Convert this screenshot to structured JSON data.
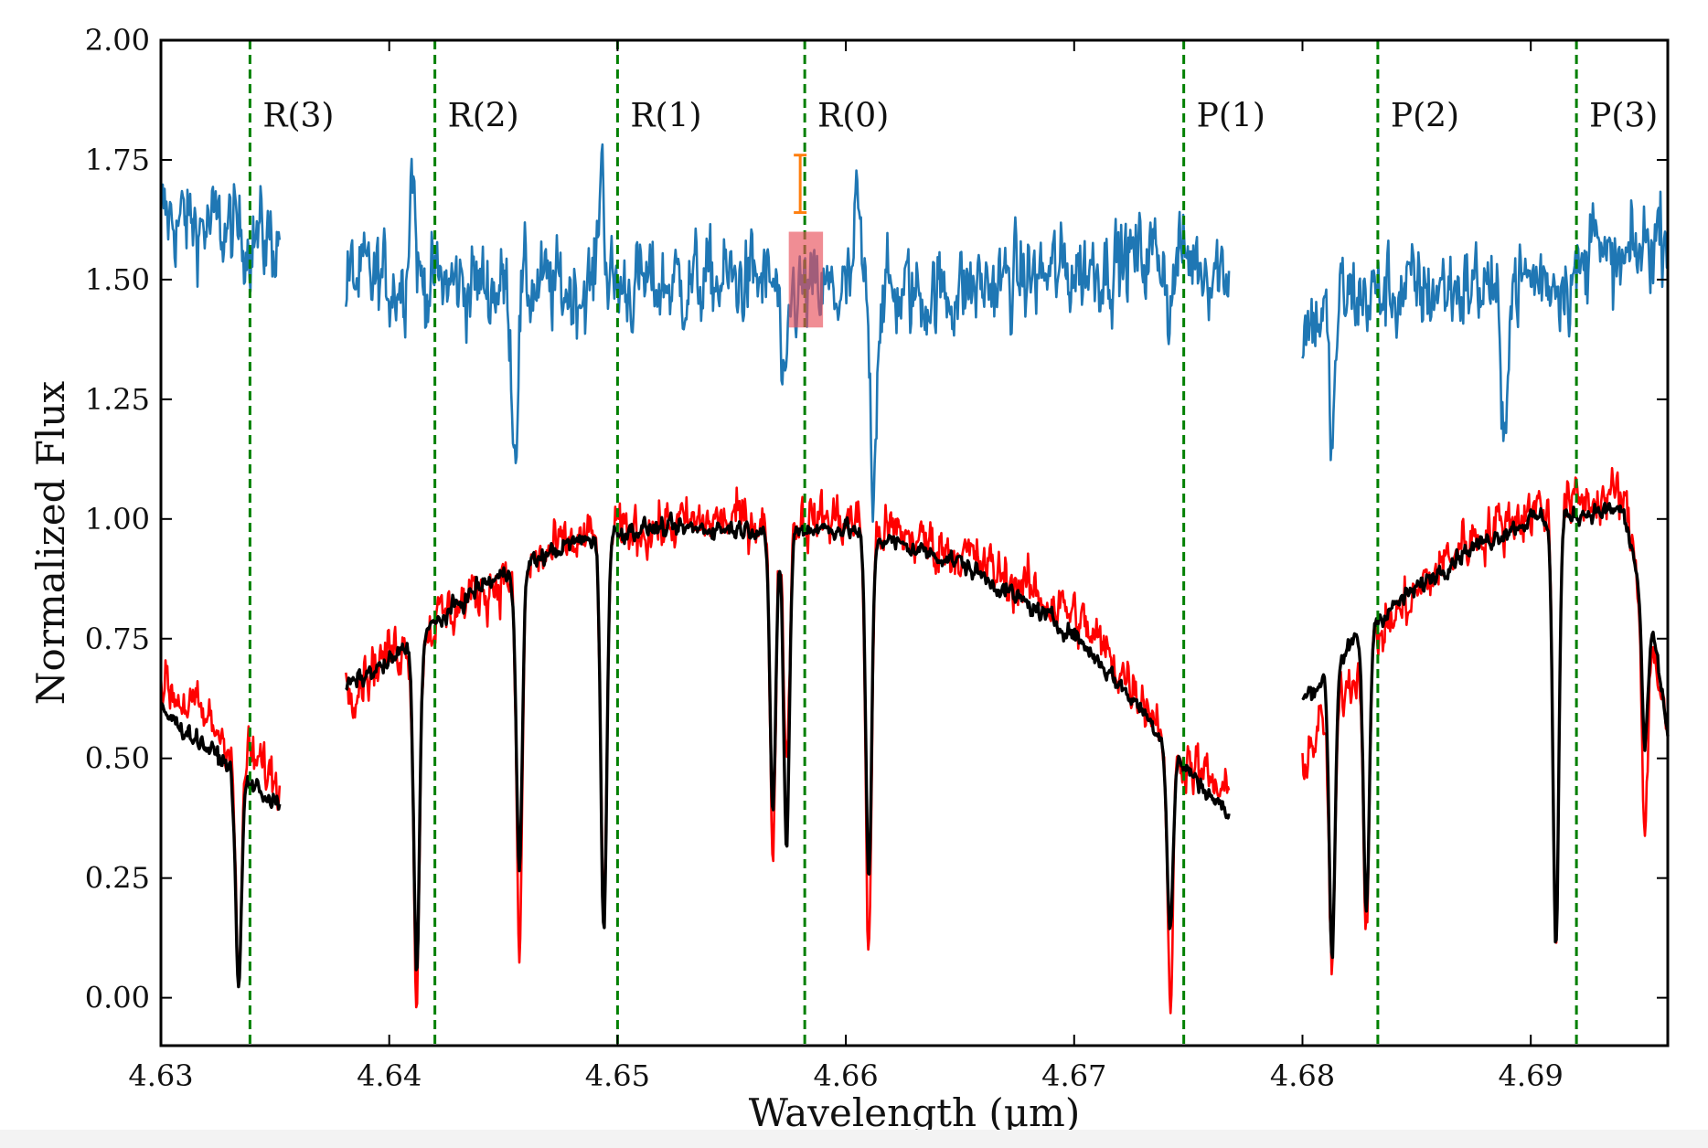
{
  "chart_data": {
    "type": "line",
    "xlabel": "Wavelength (μm)",
    "ylabel": "Normalized Flux",
    "xlim": [
      4.63,
      4.696
    ],
    "ylim": [
      -0.1,
      2.0
    ],
    "xticks": [
      4.63,
      4.64,
      4.65,
      4.66,
      4.67,
      4.68,
      4.69
    ],
    "xtick_labels": [
      "4.63",
      "4.64",
      "4.65",
      "4.66",
      "4.67",
      "4.68",
      "4.69"
    ],
    "yticks": [
      0.0,
      0.25,
      0.5,
      0.75,
      1.0,
      1.25,
      1.5,
      1.75,
      2.0
    ],
    "ytick_labels": [
      "0.00",
      "0.25",
      "0.50",
      "0.75",
      "1.00",
      "1.25",
      "1.50",
      "1.75",
      "2.00"
    ],
    "grid": false,
    "colors": {
      "blue": "#1f77b4",
      "red": "#ff0000",
      "black": "#000000",
      "vline": "#008000",
      "errorbar": "#ff7f0e",
      "box": "#e8505b"
    },
    "vlines": [
      {
        "x": 4.6339,
        "label": "R(3)"
      },
      {
        "x": 4.642,
        "label": "R(2)"
      },
      {
        "x": 4.65,
        "label": "R(1)"
      },
      {
        "x": 4.6582,
        "label": "R(0)"
      },
      {
        "x": 4.6748,
        "label": "P(1)"
      },
      {
        "x": 4.6833,
        "label": "P(2)"
      },
      {
        "x": 4.692,
        "label": "P(3)"
      }
    ],
    "segments": [
      {
        "xmin": 4.63,
        "xmax": 4.6352
      },
      {
        "xmin": 4.6381,
        "xmax": 4.6768
      },
      {
        "xmin": 4.68,
        "xmax": 4.696
      }
    ],
    "series": [
      {
        "color": "blue",
        "noise": 0.06,
        "points": [
          [
            4.63,
            1.63
          ],
          [
            4.6352,
            1.58
          ],
          [
            4.6381,
            1.5
          ],
          [
            4.648,
            1.48
          ],
          [
            4.656,
            1.5
          ],
          [
            4.658,
            1.47
          ],
          [
            4.664,
            1.47
          ],
          [
            4.67,
            1.52
          ],
          [
            4.674,
            1.56
          ],
          [
            4.6768,
            1.52
          ],
          [
            4.68,
            1.4
          ],
          [
            4.6815,
            1.46
          ],
          [
            4.69,
            1.5
          ],
          [
            4.694,
            1.52
          ],
          [
            4.696,
            1.62
          ]
        ],
        "features": [
          [
            4.6455,
            -0.32
          ],
          [
            4.641,
            0.25
          ],
          [
            4.6493,
            0.27
          ],
          [
            4.6612,
            -0.38
          ],
          [
            4.6573,
            -0.28
          ],
          [
            4.6742,
            -0.33
          ],
          [
            4.6888,
            -0.38
          ],
          [
            4.6813,
            -0.3
          ],
          [
            4.6605,
            0.18
          ],
          [
            4.6928,
            0.2
          ],
          [
            4.6742,
            0.2
          ]
        ]
      },
      {
        "color": "red",
        "noise": 0.035,
        "points": [
          [
            4.63,
            0.66
          ],
          [
            4.6352,
            0.45
          ],
          [
            4.6381,
            0.65
          ],
          [
            4.64,
            0.72
          ],
          [
            4.644,
            0.85
          ],
          [
            4.648,
            0.95
          ],
          [
            4.651,
            0.98
          ],
          [
            4.656,
            1.0
          ],
          [
            4.658,
            1.0
          ],
          [
            4.66,
            1.0
          ],
          [
            4.665,
            0.93
          ],
          [
            4.67,
            0.8
          ],
          [
            4.673,
            0.63
          ],
          [
            4.6745,
            0.52
          ],
          [
            4.6768,
            0.41
          ],
          [
            4.68,
            0.5
          ],
          [
            4.683,
            0.74
          ],
          [
            4.687,
            0.95
          ],
          [
            4.69,
            1.02
          ],
          [
            4.694,
            1.05
          ],
          [
            4.6955,
            0.7
          ],
          [
            4.696,
            0.55
          ]
        ],
        "features": [
          [
            4.6334,
            -0.5
          ],
          [
            4.6412,
            -0.75
          ],
          [
            4.6457,
            -0.8
          ],
          [
            4.6494,
            -0.8
          ],
          [
            4.6568,
            -0.68
          ],
          [
            4.6574,
            -0.5
          ],
          [
            4.661,
            -0.9
          ],
          [
            4.6742,
            -0.55
          ],
          [
            4.6813,
            -0.55
          ],
          [
            4.6828,
            -0.55
          ],
          [
            4.6911,
            -0.9
          ],
          [
            4.695,
            -0.45
          ]
        ]
      },
      {
        "color": "black",
        "noise": 0.012,
        "points": [
          [
            4.63,
            0.6
          ],
          [
            4.6352,
            0.4
          ],
          [
            4.6381,
            0.65
          ],
          [
            4.64,
            0.7
          ],
          [
            4.644,
            0.86
          ],
          [
            4.648,
            0.95
          ],
          [
            4.651,
            0.98
          ],
          [
            4.656,
            0.98
          ],
          [
            4.658,
            0.98
          ],
          [
            4.66,
            0.98
          ],
          [
            4.665,
            0.91
          ],
          [
            4.67,
            0.76
          ],
          [
            4.673,
            0.6
          ],
          [
            4.6745,
            0.5
          ],
          [
            4.6768,
            0.38
          ],
          [
            4.68,
            0.62
          ],
          [
            4.683,
            0.78
          ],
          [
            4.687,
            0.93
          ],
          [
            4.69,
            1.0
          ],
          [
            4.694,
            1.02
          ],
          [
            4.6955,
            0.72
          ],
          [
            4.696,
            0.55
          ]
        ],
        "features": [
          [
            4.6334,
            -0.45
          ],
          [
            4.6412,
            -0.68
          ],
          [
            4.6457,
            -0.64
          ],
          [
            4.6494,
            -0.82
          ],
          [
            4.6568,
            -0.6
          ],
          [
            4.6574,
            -0.66
          ],
          [
            4.661,
            -0.72
          ],
          [
            4.6742,
            -0.38
          ],
          [
            4.6813,
            -0.6
          ],
          [
            4.6828,
            -0.6
          ],
          [
            4.6911,
            -0.9
          ],
          [
            4.695,
            -0.3
          ]
        ]
      }
    ],
    "highlight_box": {
      "x0": 4.6575,
      "x1": 4.659,
      "y0": 1.4,
      "y1": 1.6
    },
    "errorbar": {
      "x": 4.658,
      "y": 1.7,
      "yerr": 0.06
    }
  }
}
